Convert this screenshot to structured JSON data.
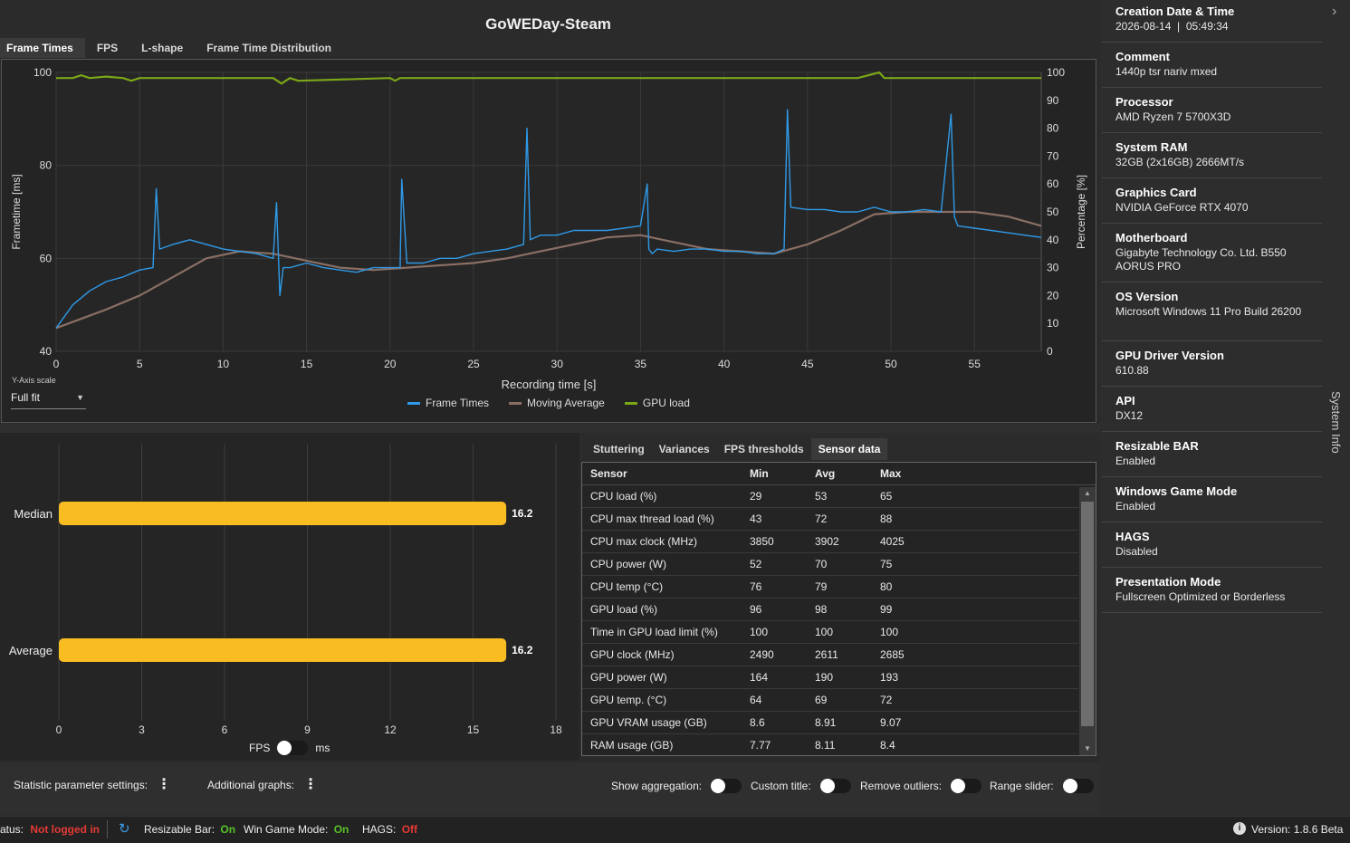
{
  "title": "GoWEDay-Steam",
  "chart_tabs": [
    "Frame Times",
    "FPS",
    "L-shape",
    "Frame Time Distribution"
  ],
  "chart_data": [
    {
      "type": "line",
      "xlabel": "Recording time [s]",
      "ylabel": "Frametime [ms]",
      "y2label": "Percentage [%]",
      "xlim": [
        0,
        59
      ],
      "ylim": [
        40,
        100
      ],
      "y2lim": [
        0,
        100
      ],
      "x_ticks": [
        0,
        5,
        10,
        15,
        20,
        25,
        30,
        35,
        40,
        45,
        50,
        55
      ],
      "y_ticks": [
        40,
        60,
        80,
        100
      ],
      "y2_ticks": [
        0,
        10,
        20,
        30,
        40,
        50,
        60,
        70,
        80,
        90,
        100
      ],
      "grid": true,
      "legend_position": "bottom-center",
      "series": [
        {
          "name": "Frame Times",
          "color": "#2f9ae8",
          "x": [
            0,
            1,
            2,
            3,
            4,
            5,
            5.8,
            6,
            6.2,
            7,
            8,
            9,
            10,
            11,
            12,
            13,
            13.2,
            13.4,
            13.6,
            14,
            15,
            16,
            17,
            18,
            19,
            20,
            20.6,
            20.7,
            21,
            22,
            23,
            24,
            25,
            26,
            27,
            28,
            28.2,
            28.4,
            29,
            30,
            31,
            32,
            33,
            34,
            35,
            35.4,
            35.5,
            35.7,
            36,
            37,
            38,
            39,
            40,
            41,
            42,
            43,
            43.6,
            43.8,
            44,
            45,
            46,
            47,
            48,
            49,
            50,
            51,
            52,
            53,
            53.6,
            53.8,
            54,
            55,
            56,
            57,
            58,
            59
          ],
          "y": [
            45,
            50,
            53,
            55,
            56,
            57.5,
            58,
            75,
            62,
            63,
            64,
            63,
            62,
            61.5,
            61,
            60,
            72,
            52,
            58,
            58,
            59,
            58,
            57.5,
            57,
            58,
            58,
            58,
            77,
            59,
            59,
            60,
            60,
            61,
            61.5,
            62,
            63,
            88,
            64,
            65,
            65,
            66,
            66,
            66,
            66.5,
            67,
            76,
            62,
            61,
            62,
            61.5,
            62,
            62,
            61.5,
            61.5,
            61,
            61,
            62,
            92,
            71,
            70.5,
            70.5,
            70,
            70,
            71,
            70,
            70,
            70.5,
            70,
            91,
            69,
            67,
            66.5,
            66,
            65.5,
            65,
            64.5
          ]
        },
        {
          "name": "Moving Average",
          "color": "#8a6f65",
          "x": [
            0,
            3,
            5,
            7,
            9,
            11,
            13,
            15,
            17,
            19,
            21,
            23,
            25,
            27,
            29,
            31,
            33,
            35,
            37,
            39,
            41,
            43,
            45,
            47,
            49,
            51,
            53,
            55,
            57,
            59
          ],
          "y": [
            45,
            49,
            52,
            56,
            60,
            61.5,
            61,
            59.5,
            58,
            57.5,
            58,
            58.5,
            59,
            60,
            61.5,
            63,
            64.5,
            65,
            63.5,
            62,
            61.5,
            61,
            63,
            66,
            69.5,
            70,
            70,
            70,
            69,
            67
          ]
        },
        {
          "name": "GPU load",
          "color": "#7aa618",
          "x": [
            0,
            1,
            1.5,
            2,
            3,
            4,
            4.5,
            5,
            13,
            13.5,
            14,
            14.5,
            20,
            20.3,
            20.6,
            30,
            40,
            48,
            49.3,
            49.6,
            50,
            59
          ],
          "y": [
            98,
            98,
            99,
            98,
            98.5,
            98,
            97,
            98,
            98,
            96,
            98,
            97,
            98,
            97,
            98,
            98,
            98,
            98,
            100,
            98,
            98,
            98
          ]
        }
      ]
    },
    {
      "type": "bar",
      "orientation": "horizontal",
      "categories": [
        "Median",
        "Average"
      ],
      "values": [
        16.2,
        16.2
      ],
      "xlim": [
        0,
        18
      ],
      "x_ticks": [
        0,
        3,
        6,
        9,
        12,
        15,
        18
      ],
      "color": "#f9bd22"
    }
  ],
  "y_axis_scale": {
    "label": "Y-Axis scale",
    "value": "Full fit"
  },
  "fps_ms_toggle": {
    "left": "FPS",
    "right": "ms"
  },
  "stat_tabs": [
    "Stuttering",
    "Variances",
    "FPS thresholds",
    "Sensor data"
  ],
  "sensor_table": {
    "headers": [
      "Sensor",
      "Min",
      "Avg",
      "Max"
    ],
    "rows": [
      [
        "CPU load (%)",
        "29",
        "53",
        "65"
      ],
      [
        "CPU max thread load (%)",
        "43",
        "72",
        "88"
      ],
      [
        "CPU max clock (MHz)",
        "3850",
        "3902",
        "4025"
      ],
      [
        "CPU power (W)",
        "52",
        "70",
        "75"
      ],
      [
        "CPU temp (°C)",
        "76",
        "79",
        "80"
      ],
      [
        "GPU load (%)",
        "96",
        "98",
        "99"
      ],
      [
        "Time in GPU load limit (%)",
        "100",
        "100",
        "100"
      ],
      [
        "GPU clock (MHz)",
        "2490",
        "2611",
        "2685"
      ],
      [
        "GPU power (W)",
        "164",
        "190",
        "193"
      ],
      [
        "GPU temp. (°C)",
        "64",
        "69",
        "72"
      ],
      [
        "GPU VRAM usage (GB)",
        "8.6",
        "8.91",
        "9.07"
      ],
      [
        "RAM usage (GB)",
        "7.77",
        "8.11",
        "8.4"
      ]
    ]
  },
  "bottom_bar": {
    "stat_settings": "Statistic parameter settings:",
    "additional_graphs": "Additional graphs:",
    "show_aggregation": "Show aggregation:",
    "custom_title": "Custom title:",
    "remove_outliers": "Remove outliers:",
    "range_slider": "Range slider:"
  },
  "status_bar": {
    "status_label": "atus:",
    "status_value": "Not logged in",
    "resizable_bar_label": "Resizable Bar:",
    "resizable_bar_value": "On",
    "game_mode_label": "Win Game Mode:",
    "game_mode_value": "On",
    "hags_label": "HAGS:",
    "hags_value": "Off",
    "version": "Version: 1.8.6 Beta"
  },
  "system_info": {
    "tab_label": "System Info",
    "items": [
      {
        "label": "Creation Date & Time",
        "value": "2026-08-14  |  05:49:34"
      },
      {
        "label": "Comment",
        "value": "1440p tsr nariv mxed"
      },
      {
        "label": "Processor",
        "value": "AMD Ryzen 7 5700X3D"
      },
      {
        "label": "System RAM",
        "value": "32GB (2x16GB) 2666MT/s"
      },
      {
        "label": "Graphics Card",
        "value": "NVIDIA GeForce RTX 4070"
      },
      {
        "label": "Motherboard",
        "value": "Gigabyte Technology Co. Ltd. B550 AORUS PRO"
      },
      {
        "label": "OS Version",
        "value": "Microsoft Windows 11 Pro Build 26200"
      },
      {
        "label": "GPU Driver Version",
        "value": "610.88"
      },
      {
        "label": "API",
        "value": "DX12"
      },
      {
        "label": "Resizable BAR",
        "value": "Enabled"
      },
      {
        "label": "Windows Game Mode",
        "value": "Enabled"
      },
      {
        "label": "HAGS",
        "value": "Disabled"
      },
      {
        "label": "Presentation Mode",
        "value": "Fullscreen Optimized or Borderless"
      }
    ]
  },
  "colors": {
    "accent_red": "#e53935",
    "accent_green": "#57c229",
    "bar_yellow": "#f9bd22"
  }
}
